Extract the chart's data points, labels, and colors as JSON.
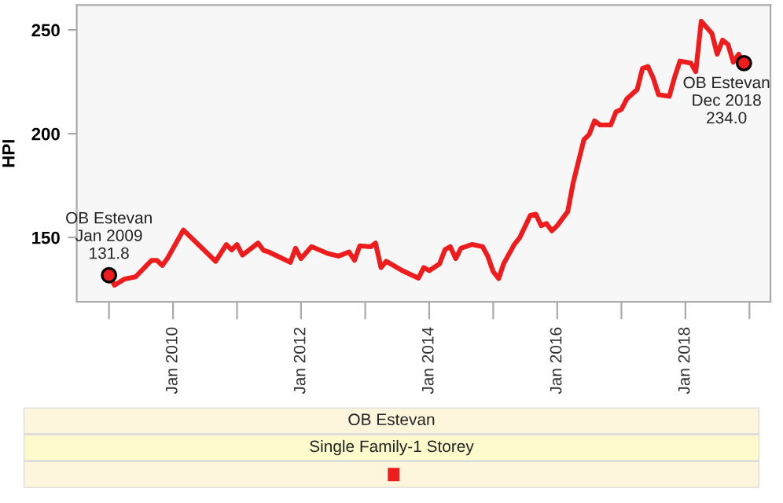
{
  "chart_data": {
    "type": "line",
    "ylabel": "HPI",
    "legend_title": "OB Estevan",
    "legend": "bottom",
    "x": [
      "2009-01",
      "2009-02",
      "2009-04",
      "2009-06",
      "2009-09",
      "2009-10",
      "2009-11",
      "2009-12",
      "2010-03",
      "2010-09",
      "2010-11",
      "2010-12",
      "2011-01",
      "2011-02",
      "2011-05",
      "2011-06",
      "2011-07",
      "2011-11",
      "2011-12",
      "2012-01",
      "2012-03",
      "2012-06",
      "2012-08",
      "2012-10",
      "2012-11",
      "2012-12",
      "2013-02",
      "2013-03",
      "2013-04",
      "2013-05",
      "2013-08",
      "2013-11",
      "2013-12",
      "2014-01",
      "2014-03",
      "2014-04",
      "2014-05",
      "2014-06",
      "2014-07",
      "2014-09",
      "2014-11",
      "2014-12",
      "2015-01",
      "2015-02",
      "2015-03",
      "2015-05",
      "2015-06",
      "2015-08",
      "2015-09",
      "2015-10",
      "2015-11",
      "2015-12",
      "2016-01",
      "2016-03",
      "2016-04",
      "2016-06",
      "2016-07",
      "2016-08",
      "2016-09",
      "2016-11",
      "2016-12",
      "2017-01",
      "2017-02",
      "2017-04",
      "2017-05",
      "2017-06",
      "2017-07",
      "2017-08",
      "2017-10",
      "2017-11",
      "2017-12",
      "2018-02",
      "2018-03",
      "2018-04",
      "2018-06",
      "2018-07",
      "2018-08",
      "2018-09",
      "2018-10",
      "2018-11",
      "2018-12"
    ],
    "series": [
      {
        "name": "Single Family-1 Storey",
        "color": "#ee1c1c",
        "values": [
          131.8,
          127,
          130,
          131,
          139,
          139,
          136.5,
          140,
          153.6,
          138.5,
          146.6,
          144,
          146.6,
          141.5,
          147.3,
          143.8,
          143,
          138,
          144.8,
          139.8,
          145.6,
          142.3,
          141,
          143,
          139,
          146,
          145.5,
          147.3,
          135.5,
          138.5,
          134,
          130.4,
          135.5,
          134,
          137.3,
          144.1,
          145.6,
          139.8,
          144.8,
          146.6,
          145.6,
          141,
          133.5,
          130.2,
          137.3,
          146.6,
          149.9,
          160.7,
          161.2,
          155.7,
          156.7,
          153.2,
          155.7,
          162.5,
          176.4,
          197.1,
          199.6,
          206.2,
          204.2,
          204.2,
          210.5,
          211.7,
          216.8,
          221.3,
          231.4,
          232.4,
          226.9,
          218.8,
          218,
          227.4,
          235,
          234,
          229.9,
          254.2,
          248.3,
          238.3,
          245.1,
          243,
          234.5,
          238.3,
          234.0
        ]
      }
    ],
    "xlim": [
      "2008-07",
      "2019-05"
    ],
    "xticks": [
      {
        "value": "2009-01",
        "label": null
      },
      {
        "value": "2010-01",
        "label": "Jan 2010"
      },
      {
        "value": "2011-01",
        "label": null
      },
      {
        "value": "2012-01",
        "label": "Jan 2012"
      },
      {
        "value": "2013-01",
        "label": null
      },
      {
        "value": "2014-01",
        "label": "Jan 2014"
      },
      {
        "value": "2015-01",
        "label": null
      },
      {
        "value": "2016-01",
        "label": "Jan 2016"
      },
      {
        "value": "2017-01",
        "label": null
      },
      {
        "value": "2018-01",
        "label": "Jan 2018"
      },
      {
        "value": "2019-01",
        "label": null
      }
    ],
    "ylim": [
      119,
      262
    ],
    "yticks": [
      150,
      200,
      250
    ],
    "grid": false,
    "line_style": "solid",
    "annotations": [
      {
        "text": "OB Estevan\nJan 2009\n131.8",
        "x": "2009-01",
        "y": 131.8
      },
      {
        "text": "OB Estevan\nDec 2018\n234.0",
        "x": "2018-12",
        "y": 234.0
      }
    ]
  }
}
